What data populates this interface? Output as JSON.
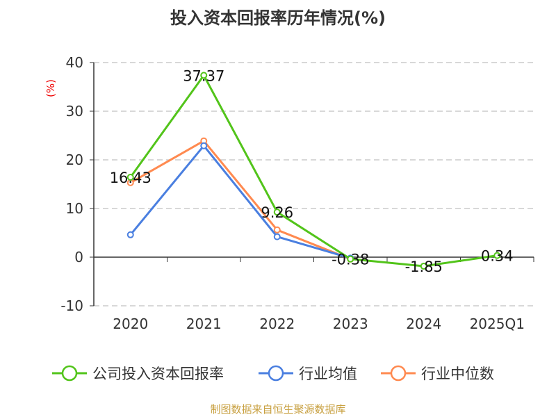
{
  "title": "投入资本回报率历年情况(%)",
  "source": "制图数据来自恒生聚源数据库",
  "chart_data": {
    "type": "line",
    "title": "投入资本回报率历年情况(%)",
    "ylabel": "(%)",
    "ylim": [
      -10,
      40
    ],
    "yticks": [
      -10,
      0,
      10,
      20,
      30,
      40
    ],
    "grid": true,
    "legend": "bottom",
    "categories": [
      "2020",
      "2021",
      "2022",
      "2023",
      "2024",
      "2025Q1"
    ],
    "series": [
      {
        "name": "公司投入资本回报率",
        "color": "#52c41a",
        "values": [
          16.43,
          37.37,
          9.26,
          -0.38,
          -1.85,
          0.34
        ],
        "labels": [
          "16.43",
          "37.37",
          "9.26",
          "-0.38",
          "-1.85",
          "0.34"
        ]
      },
      {
        "name": "行业均值",
        "color": "#4a7fe0",
        "values": [
          4.6,
          22.9,
          4.2,
          -0.2,
          null,
          null
        ]
      },
      {
        "name": "行业中位数",
        "color": "#ff8a50",
        "values": [
          15.3,
          23.9,
          5.6,
          -0.4,
          null,
          null
        ]
      }
    ]
  }
}
